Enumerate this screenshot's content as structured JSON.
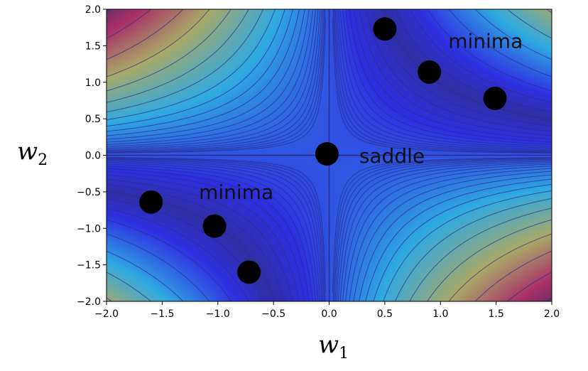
{
  "chart_data": {
    "type": "scatter",
    "title": "",
    "xlabel": "w",
    "xlabel_sub": "1",
    "ylabel": "w",
    "ylabel_sub": "2",
    "xlim": [
      -2.0,
      2.0
    ],
    "ylim": [
      -2.0,
      2.0
    ],
    "x_ticks": [
      "−2.0",
      "−1.5",
      "−1.0",
      "−0.5",
      "0.0",
      "0.5",
      "1.0",
      "1.5",
      "2.0"
    ],
    "y_ticks": [
      "−2.0",
      "−1.5",
      "−1.0",
      "−0.5",
      "0.0",
      "0.5",
      "1.0",
      "1.5",
      "2.0"
    ],
    "background": "filled contour of (1 − w1·w2)², jet colormap under translucent blue overlay",
    "points": [
      {
        "x": 0.5,
        "y": 1.73
      },
      {
        "x": 0.9,
        "y": 1.14
      },
      {
        "x": 1.49,
        "y": 0.78
      },
      {
        "x": -0.02,
        "y": 0.02
      },
      {
        "x": -1.6,
        "y": -0.64
      },
      {
        "x": -1.03,
        "y": -0.97
      },
      {
        "x": -0.72,
        "y": -1.6
      }
    ],
    "annotations": [
      {
        "text": "minima",
        "x": 1.07,
        "y": 1.47
      },
      {
        "text": "saddle",
        "x": 0.27,
        "y": -0.1
      },
      {
        "text": "minima",
        "x": -1.17,
        "y": -0.6
      }
    ],
    "colors": {
      "point": "#000000",
      "overlay": "#5a5ac8",
      "contour_line": "#2a2a8a"
    }
  }
}
